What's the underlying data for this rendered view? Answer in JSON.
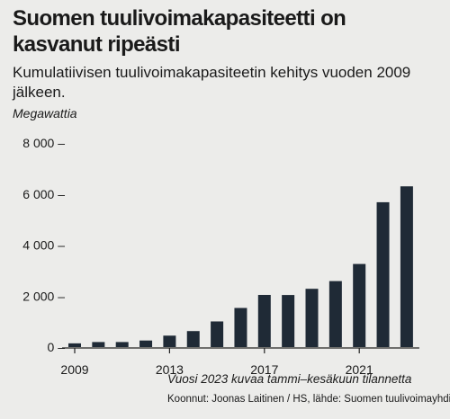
{
  "chart_data": {
    "type": "bar",
    "title": "Suomen tuulivoimakapasiteetti on kasvanut ripeästi",
    "subtitle": "Kumulatiivisen tuulivoimakapasiteetin kehitys vuoden 2009 jälkeen.",
    "ylabel": "Megawattia",
    "xlabel": "",
    "categories": [
      "2009",
      "2010",
      "2011",
      "2012",
      "2013",
      "2014",
      "2015",
      "2016",
      "2017",
      "2018",
      "2019",
      "2020",
      "2021",
      "2022",
      "2023"
    ],
    "values": [
      146,
      197,
      197,
      257,
      448,
      627,
      1005,
      1533,
      2044,
      2041,
      2284,
      2586,
      3257,
      5677,
      6300
    ],
    "ylim": [
      0,
      8000
    ],
    "yticks": [
      0,
      2000,
      4000,
      6000,
      8000
    ],
    "ytick_labels": [
      "0 –",
      "2 000 –",
      "4 000 –",
      "6 000 –",
      "8 000 –"
    ],
    "xticks": [
      "2009",
      "2013",
      "2017",
      "2021"
    ],
    "grid": false,
    "bar_color": "#1f2a36",
    "note": "Vuosi 2023 kuvaa tammi–kesäkuun tilannetta",
    "source": "Koonnut: Joonas Laitinen / HS, lähde: Suomen tuulivoimayhdistys"
  }
}
